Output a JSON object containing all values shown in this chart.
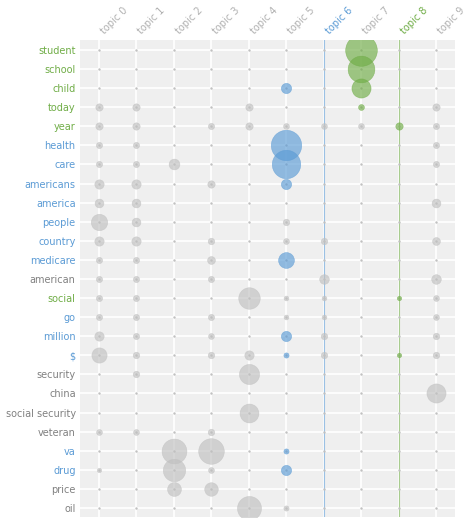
{
  "topics": [
    "topic 0",
    "topic 1",
    "topic 2",
    "topic 3",
    "topic 4",
    "topic 5",
    "topic 6",
    "topic 7",
    "topic 8",
    "topic 9"
  ],
  "words": [
    "student",
    "school",
    "child",
    "today",
    "year",
    "health",
    "care",
    "americans",
    "america",
    "people",
    "country",
    "medicare",
    "american",
    "social",
    "go",
    "million",
    "$",
    "security",
    "china",
    "social security",
    "veteran",
    "va",
    "drug",
    "price",
    "oil"
  ],
  "topic_label_colors": {
    "topic 6": "#5b9bd5",
    "topic 8": "#70ad47"
  },
  "word_colors": {
    "student": "#70ad47",
    "school": "#70ad47",
    "child": "#70ad47",
    "today": "#70ad47",
    "year": "#70ad47",
    "health": "#5b9bd5",
    "care": "#5b9bd5",
    "americans": "#5b9bd5",
    "america": "#5b9bd5",
    "people": "#5b9bd5",
    "country": "#5b9bd5",
    "medicare": "#5b9bd5",
    "american": "#808080",
    "social": "#70ad47",
    "go": "#5b9bd5",
    "million": "#5b9bd5",
    "$": "#5b9bd5",
    "security": "#808080",
    "china": "#808080",
    "social security": "#808080",
    "veteran": "#808080",
    "va": "#5b9bd5",
    "drug": "#5b9bd5",
    "price": "#808080",
    "oil": "#808080"
  },
  "bubble_data": [
    {
      "word": "student",
      "topic": 7,
      "size": 520,
      "color": "#70ad47"
    },
    {
      "word": "school",
      "topic": 7,
      "size": 370,
      "color": "#70ad47"
    },
    {
      "word": "child",
      "topic": 5,
      "size": 55,
      "color": "#5b9bd5"
    },
    {
      "word": "child",
      "topic": 7,
      "size": 190,
      "color": "#70ad47"
    },
    {
      "word": "today",
      "topic": 0,
      "size": 28,
      "color": "#c0c0c0"
    },
    {
      "word": "today",
      "topic": 1,
      "size": 28,
      "color": "#c0c0c0"
    },
    {
      "word": "today",
      "topic": 4,
      "size": 28,
      "color": "#c0c0c0"
    },
    {
      "word": "today",
      "topic": 7,
      "size": 18,
      "color": "#70ad47"
    },
    {
      "word": "today",
      "topic": 9,
      "size": 28,
      "color": "#c0c0c0"
    },
    {
      "word": "year",
      "topic": 0,
      "size": 28,
      "color": "#c0c0c0"
    },
    {
      "word": "year",
      "topic": 1,
      "size": 28,
      "color": "#c0c0c0"
    },
    {
      "word": "year",
      "topic": 3,
      "size": 20,
      "color": "#c0c0c0"
    },
    {
      "word": "year",
      "topic": 4,
      "size": 28,
      "color": "#c0c0c0"
    },
    {
      "word": "year",
      "topic": 5,
      "size": 18,
      "color": "#c0c0c0"
    },
    {
      "word": "year",
      "topic": 6,
      "size": 18,
      "color": "#c0c0c0"
    },
    {
      "word": "year",
      "topic": 7,
      "size": 18,
      "color": "#c0c0c0"
    },
    {
      "word": "year",
      "topic": 8,
      "size": 28,
      "color": "#70ad47"
    },
    {
      "word": "year",
      "topic": 9,
      "size": 20,
      "color": "#c0c0c0"
    },
    {
      "word": "health",
      "topic": 0,
      "size": 20,
      "color": "#c0c0c0"
    },
    {
      "word": "health",
      "topic": 1,
      "size": 20,
      "color": "#c0c0c0"
    },
    {
      "word": "health",
      "topic": 5,
      "size": 480,
      "color": "#5b9bd5"
    },
    {
      "word": "health",
      "topic": 9,
      "size": 20,
      "color": "#c0c0c0"
    },
    {
      "word": "care",
      "topic": 0,
      "size": 20,
      "color": "#c0c0c0"
    },
    {
      "word": "care",
      "topic": 1,
      "size": 20,
      "color": "#c0c0c0"
    },
    {
      "word": "care",
      "topic": 2,
      "size": 60,
      "color": "#c0c0c0"
    },
    {
      "word": "care",
      "topic": 5,
      "size": 420,
      "color": "#5b9bd5"
    },
    {
      "word": "care",
      "topic": 9,
      "size": 20,
      "color": "#c0c0c0"
    },
    {
      "word": "americans",
      "topic": 0,
      "size": 45,
      "color": "#c0c0c0"
    },
    {
      "word": "americans",
      "topic": 1,
      "size": 45,
      "color": "#c0c0c0"
    },
    {
      "word": "americans",
      "topic": 3,
      "size": 28,
      "color": "#c0c0c0"
    },
    {
      "word": "americans",
      "topic": 5,
      "size": 55,
      "color": "#5b9bd5"
    },
    {
      "word": "america",
      "topic": 0,
      "size": 40,
      "color": "#c0c0c0"
    },
    {
      "word": "america",
      "topic": 1,
      "size": 40,
      "color": "#c0c0c0"
    },
    {
      "word": "america",
      "topic": 9,
      "size": 40,
      "color": "#c0c0c0"
    },
    {
      "word": "people",
      "topic": 0,
      "size": 140,
      "color": "#c0c0c0"
    },
    {
      "word": "people",
      "topic": 1,
      "size": 40,
      "color": "#c0c0c0"
    },
    {
      "word": "people",
      "topic": 5,
      "size": 22,
      "color": "#c0c0c0"
    },
    {
      "word": "country",
      "topic": 0,
      "size": 45,
      "color": "#c0c0c0"
    },
    {
      "word": "country",
      "topic": 1,
      "size": 45,
      "color": "#c0c0c0"
    },
    {
      "word": "country",
      "topic": 3,
      "size": 22,
      "color": "#c0c0c0"
    },
    {
      "word": "country",
      "topic": 5,
      "size": 18,
      "color": "#c0c0c0"
    },
    {
      "word": "country",
      "topic": 6,
      "size": 22,
      "color": "#c0c0c0"
    },
    {
      "word": "country",
      "topic": 9,
      "size": 32,
      "color": "#c0c0c0"
    },
    {
      "word": "medicare",
      "topic": 0,
      "size": 20,
      "color": "#c0c0c0"
    },
    {
      "word": "medicare",
      "topic": 1,
      "size": 20,
      "color": "#c0c0c0"
    },
    {
      "word": "medicare",
      "topic": 3,
      "size": 32,
      "color": "#c0c0c0"
    },
    {
      "word": "medicare",
      "topic": 5,
      "size": 130,
      "color": "#5b9bd5"
    },
    {
      "word": "american",
      "topic": 0,
      "size": 20,
      "color": "#c0c0c0"
    },
    {
      "word": "american",
      "topic": 1,
      "size": 20,
      "color": "#c0c0c0"
    },
    {
      "word": "american",
      "topic": 3,
      "size": 20,
      "color": "#c0c0c0"
    },
    {
      "word": "american",
      "topic": 6,
      "size": 48,
      "color": "#c0c0c0"
    },
    {
      "word": "american",
      "topic": 9,
      "size": 48,
      "color": "#c0c0c0"
    },
    {
      "word": "social",
      "topic": 0,
      "size": 20,
      "color": "#c0c0c0"
    },
    {
      "word": "social",
      "topic": 1,
      "size": 20,
      "color": "#c0c0c0"
    },
    {
      "word": "social",
      "topic": 4,
      "size": 240,
      "color": "#c0c0c0"
    },
    {
      "word": "social",
      "topic": 5,
      "size": 12,
      "color": "#c0c0c0"
    },
    {
      "word": "social",
      "topic": 6,
      "size": 12,
      "color": "#c0c0c0"
    },
    {
      "word": "social",
      "topic": 8,
      "size": 10,
      "color": "#70ad47"
    },
    {
      "word": "social",
      "topic": 9,
      "size": 18,
      "color": "#c0c0c0"
    },
    {
      "word": "go",
      "topic": 0,
      "size": 20,
      "color": "#c0c0c0"
    },
    {
      "word": "go",
      "topic": 1,
      "size": 20,
      "color": "#c0c0c0"
    },
    {
      "word": "go",
      "topic": 3,
      "size": 20,
      "color": "#c0c0c0"
    },
    {
      "word": "go",
      "topic": 5,
      "size": 12,
      "color": "#c0c0c0"
    },
    {
      "word": "go",
      "topic": 6,
      "size": 12,
      "color": "#c0c0c0"
    },
    {
      "word": "go",
      "topic": 9,
      "size": 18,
      "color": "#c0c0c0"
    },
    {
      "word": "million",
      "topic": 0,
      "size": 45,
      "color": "#c0c0c0"
    },
    {
      "word": "million",
      "topic": 1,
      "size": 20,
      "color": "#c0c0c0"
    },
    {
      "word": "million",
      "topic": 3,
      "size": 18,
      "color": "#c0c0c0"
    },
    {
      "word": "million",
      "topic": 5,
      "size": 55,
      "color": "#5b9bd5"
    },
    {
      "word": "million",
      "topic": 6,
      "size": 22,
      "color": "#c0c0c0"
    },
    {
      "word": "million",
      "topic": 9,
      "size": 22,
      "color": "#c0c0c0"
    },
    {
      "word": "$",
      "topic": 0,
      "size": 120,
      "color": "#c0c0c0"
    },
    {
      "word": "$",
      "topic": 1,
      "size": 22,
      "color": "#c0c0c0"
    },
    {
      "word": "$",
      "topic": 3,
      "size": 22,
      "color": "#c0c0c0"
    },
    {
      "word": "$",
      "topic": 4,
      "size": 45,
      "color": "#c0c0c0"
    },
    {
      "word": "$",
      "topic": 5,
      "size": 14,
      "color": "#5b9bd5"
    },
    {
      "word": "$",
      "topic": 6,
      "size": 22,
      "color": "#c0c0c0"
    },
    {
      "word": "$",
      "topic": 8,
      "size": 10,
      "color": "#70ad47"
    },
    {
      "word": "$",
      "topic": 9,
      "size": 22,
      "color": "#c0c0c0"
    },
    {
      "word": "security",
      "topic": 1,
      "size": 22,
      "color": "#c0c0c0"
    },
    {
      "word": "security",
      "topic": 4,
      "size": 210,
      "color": "#c0c0c0"
    },
    {
      "word": "china",
      "topic": 9,
      "size": 190,
      "color": "#c0c0c0"
    },
    {
      "word": "social security",
      "topic": 4,
      "size": 185,
      "color": "#c0c0c0"
    },
    {
      "word": "veteran",
      "topic": 0,
      "size": 18,
      "color": "#c0c0c0"
    },
    {
      "word": "veteran",
      "topic": 1,
      "size": 18,
      "color": "#c0c0c0"
    },
    {
      "word": "veteran",
      "topic": 3,
      "size": 22,
      "color": "#c0c0c0"
    },
    {
      "word": "va",
      "topic": 2,
      "size": 320,
      "color": "#c0c0c0"
    },
    {
      "word": "va",
      "topic": 3,
      "size": 340,
      "color": "#c0c0c0"
    },
    {
      "word": "va",
      "topic": 5,
      "size": 14,
      "color": "#5b9bd5"
    },
    {
      "word": "drug",
      "topic": 0,
      "size": 10,
      "color": "#c0c0c0"
    },
    {
      "word": "drug",
      "topic": 2,
      "size": 260,
      "color": "#c0c0c0"
    },
    {
      "word": "drug",
      "topic": 3,
      "size": 18,
      "color": "#c0c0c0"
    },
    {
      "word": "drug",
      "topic": 5,
      "size": 55,
      "color": "#5b9bd5"
    },
    {
      "word": "price",
      "topic": 2,
      "size": 100,
      "color": "#c0c0c0"
    },
    {
      "word": "price",
      "topic": 3,
      "size": 95,
      "color": "#c0c0c0"
    },
    {
      "word": "oil",
      "topic": 4,
      "size": 300,
      "color": "#c0c0c0"
    },
    {
      "word": "oil",
      "topic": 5,
      "size": 14,
      "color": "#c0c0c0"
    }
  ],
  "background_color": "#efefef",
  "grid_color": "#ffffff",
  "topic6_line_color": "#5b9bd5",
  "topic8_line_color": "#70ad47",
  "figsize": [
    4.73,
    5.23
  ],
  "dpi": 100
}
